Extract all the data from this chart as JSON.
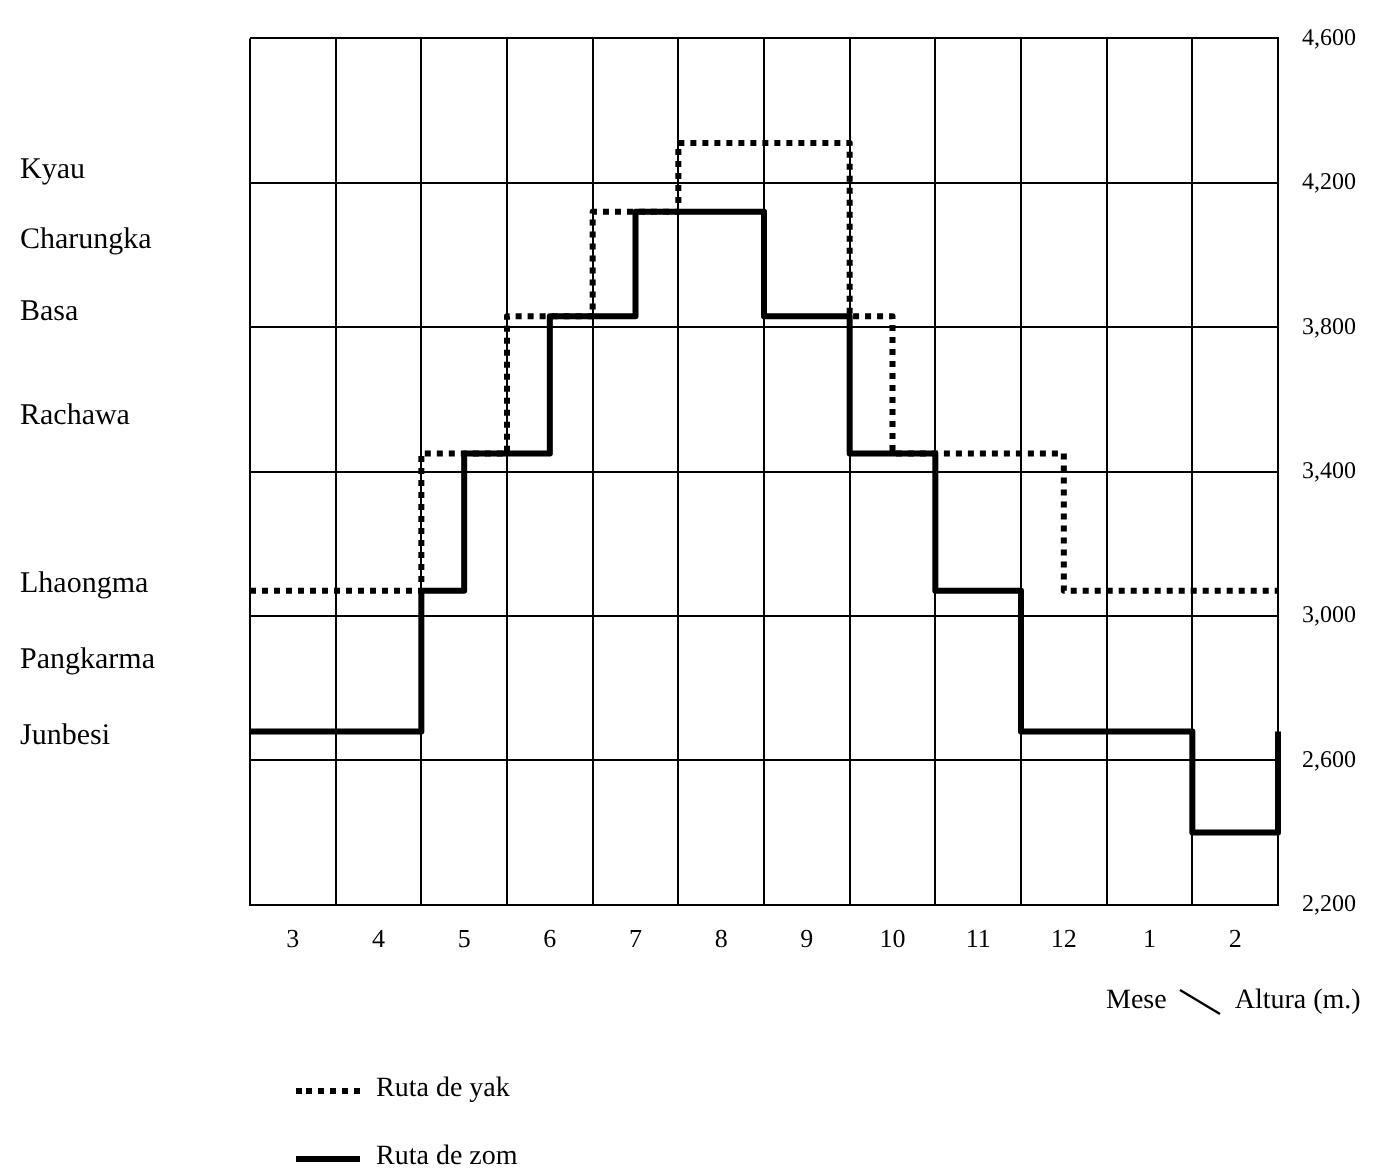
{
  "chart_data": {
    "type": "step",
    "xlabel": "Mese",
    "ylabel": "Altura (m.)",
    "categories": [
      null,
      "3",
      null,
      "4",
      null,
      "5",
      null,
      "6",
      null,
      "7",
      null,
      "8",
      null,
      "9",
      null,
      "10",
      null,
      "11",
      null,
      "12",
      null,
      "1",
      null,
      "2",
      null
    ],
    "ylim": [
      2200,
      4600
    ],
    "yticks": [
      {
        "value": 2200,
        "label": "2,200"
      },
      {
        "value": 2600,
        "label": "2,600"
      },
      {
        "value": 3000,
        "label": "3,000"
      },
      {
        "value": 3400,
        "label": "3,400"
      },
      {
        "value": 3800,
        "label": "3,800"
      },
      {
        "value": 4200,
        "label": "4,200"
      },
      {
        "value": 4600,
        "label": "4,600"
      }
    ],
    "series": [
      {
        "name": "Ruta de yak",
        "color": "#000000",
        "line_style": "dotted",
        "values": [
          3070,
          3070,
          3070,
          3070,
          3450,
          3450,
          3830,
          3830,
          4120,
          4120,
          4310,
          4310,
          4310,
          4310,
          3830,
          3450,
          3450,
          3450,
          3450,
          3070,
          3070,
          3070,
          3070,
          3070,
          3070
        ]
      },
      {
        "name": "Ruta de zom",
        "color": "#000000",
        "line_style": "solid",
        "values": [
          2680,
          2680,
          2680,
          2680,
          3070,
          3450,
          3450,
          3830,
          3830,
          4120,
          4120,
          4120,
          3830,
          3830,
          3450,
          3450,
          3070,
          3070,
          2680,
          2680,
          2680,
          2680,
          2400,
          2400,
          2680
        ]
      }
    ],
    "annotations": [
      "Kyau",
      "Charungka",
      "Basa",
      "Rachawa",
      "Lhaongma",
      "Pangkarma",
      "Junbesi"
    ],
    "grid": true,
    "legend": "bottom left"
  }
}
